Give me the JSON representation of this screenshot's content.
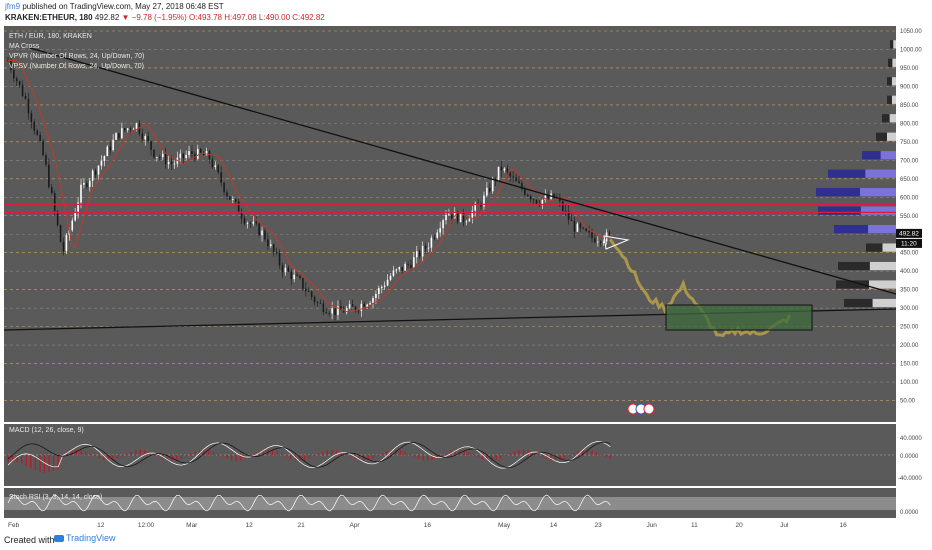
{
  "header": {
    "user": "jfm9",
    "published_text": "published on TradingView.com, May 27, 2018 06:48 EST",
    "symbol": "KRAKEN:ETHEUR, 180",
    "last": "492.82",
    "change": "▼ −9.78 (−1.95%)",
    "open": "O:493.78",
    "high": "H:497.08",
    "low": "L:490.00",
    "close": "C:492.82"
  },
  "legend": {
    "title": "ETH / EUR, 180, KRAKEN",
    "line2": "MA Cross",
    "line3": "VPVR (Number Of Rows, 24, Up/Down, 70)",
    "line4": "VPSV (Number Of Rows, 24, Up/Down, 70)"
  },
  "price_axis": {
    "ticks": [
      "1050.00",
      "1000.00",
      "950.00",
      "900.00",
      "850.00",
      "800.00",
      "750.00",
      "700.00",
      "650.00",
      "600.00",
      "550.00",
      "500.00",
      "450.00",
      "400.00",
      "350.00",
      "300.00",
      "250.00",
      "200.00",
      "150.00",
      "100.00",
      "50.00"
    ],
    "last_price_label": "492.82",
    "time_label": "11:20"
  },
  "time_axis": [
    "Feb",
    "12",
    "12:00",
    "Mar",
    "12",
    "21",
    "Apr",
    "16",
    "May",
    "14",
    "23",
    "Jun",
    "11",
    "20",
    "Jul",
    "16"
  ],
  "macd": {
    "label": "MACD (12, 26, close, 9)",
    "ticks": [
      "40.0000",
      "0.0000",
      "-40.0000"
    ]
  },
  "stoch": {
    "label": "Stoch RSI (3, 3, 14, 14, close)",
    "ticks": [
      "0.0000"
    ]
  },
  "footer": {
    "created_with": "Created with",
    "brand": "TradingView"
  },
  "colors": {
    "background": "#5a5a5a",
    "candle_up": "#ffffff",
    "candle_down": "#1a1a1a",
    "ma": "#c0392b",
    "projection": "#b9a24a",
    "resistance": "#d81e3b",
    "box_fill": "#3f6b3c",
    "vp_blue": "#2f2f8f",
    "vp_lavender": "#7b73d9"
  },
  "chart_data": {
    "type": "candlestick",
    "title": "ETH / EUR, 180, KRAKEN",
    "ylim": [
      0,
      1050
    ],
    "x": [
      "Feb",
      "12",
      "12:00",
      "Mar",
      "12",
      "21",
      "Apr",
      "16",
      "May",
      "14",
      "23",
      "Jun",
      "11",
      "20",
      "Jul",
      "16"
    ],
    "price_path_estimate": [
      [
        0,
        970
      ],
      [
        2,
        860
      ],
      [
        4,
        700
      ],
      [
        6,
        450
      ],
      [
        8,
        620
      ],
      [
        10,
        690
      ],
      [
        12,
        770
      ],
      [
        14,
        800
      ],
      [
        16,
        720
      ],
      [
        18,
        690
      ],
      [
        20,
        720
      ],
      [
        22,
        710
      ],
      [
        24,
        610
      ],
      [
        26,
        540
      ],
      [
        28,
        500
      ],
      [
        30,
        410
      ],
      [
        32,
        370
      ],
      [
        34,
        310
      ],
      [
        36,
        290
      ],
      [
        38,
        300
      ],
      [
        40,
        330
      ],
      [
        42,
        390
      ],
      [
        44,
        420
      ],
      [
        46,
        470
      ],
      [
        48,
        560
      ],
      [
        50,
        540
      ],
      [
        52,
        590
      ],
      [
        54,
        680
      ],
      [
        56,
        630
      ],
      [
        58,
        590
      ],
      [
        60,
        600
      ],
      [
        62,
        520
      ],
      [
        64,
        490
      ],
      [
        66,
        493
      ]
    ],
    "projection_estimate": [
      [
        66,
        493
      ],
      [
        68,
        420
      ],
      [
        70,
        330
      ],
      [
        72,
        300
      ],
      [
        74,
        360
      ],
      [
        76,
        290
      ],
      [
        78,
        220
      ],
      [
        80,
        240
      ],
      [
        82,
        230
      ],
      [
        84,
        250
      ],
      [
        86,
        280
      ]
    ],
    "resistance_level": 570,
    "last_price": 492.82,
    "macd_range": [
      -40,
      40
    ],
    "stoch_rsi_range": [
      0,
      100
    ]
  }
}
